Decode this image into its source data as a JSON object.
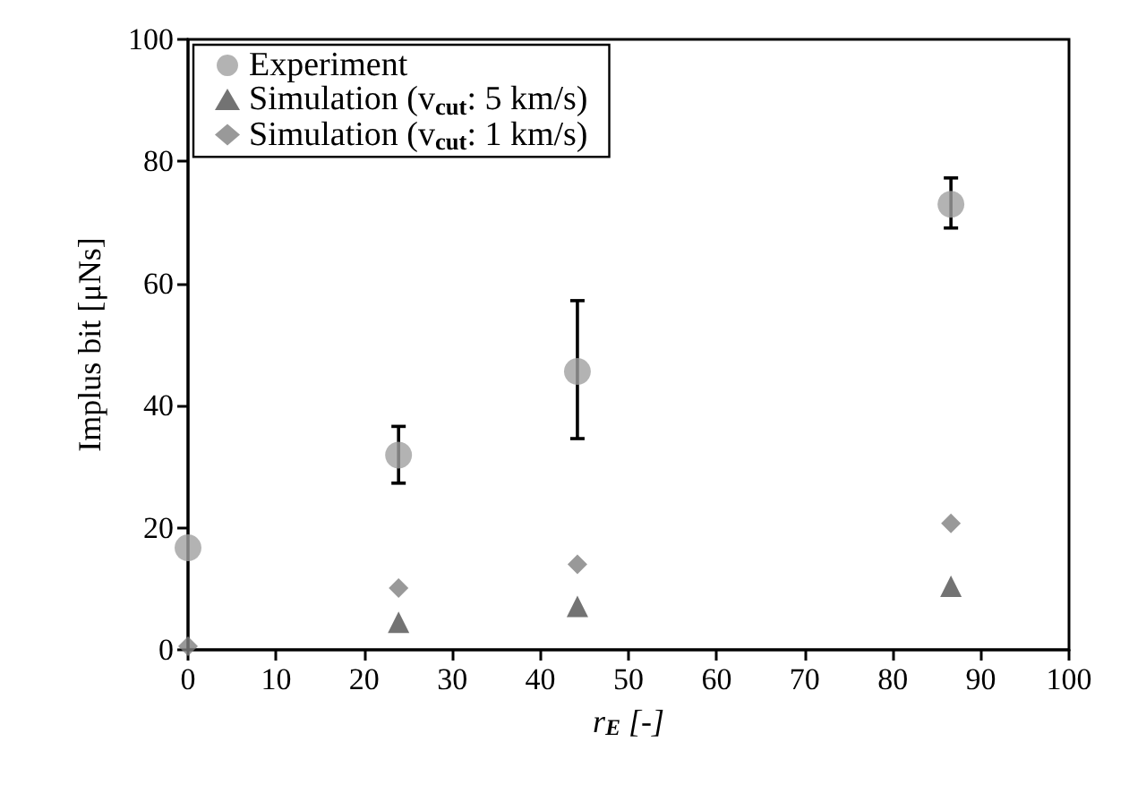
{
  "chart_data": {
    "type": "scatter",
    "xlabel": "r$_{E}$ [-]",
    "ylabel": "Implus bit [μNs]",
    "xlim": [
      0,
      100
    ],
    "xticks": [
      0,
      10,
      20,
      30,
      40,
      50,
      60,
      70,
      80,
      90,
      100
    ],
    "ylim": [
      0,
      100
    ],
    "yticks": [
      0,
      20,
      40,
      60,
      80,
      100
    ],
    "grid": false,
    "legend": "top left",
    "series": [
      {
        "name": "Experiment",
        "color": "#a0a0a0",
        "marker": "circle",
        "x": [
          0,
          23.9,
          44.2,
          86.6
        ],
        "values": [
          16.7,
          31.9,
          45.6,
          73
        ],
        "errors": [
          null,
          [
            27.3,
            36.6
          ],
          [
            34.6,
            57.2
          ],
          [
            69.1,
            77.3
          ]
        ]
      },
      {
        "name": "Simulation (v$_{cut}$: 5 km/s)",
        "color": "#505050",
        "marker": "triangle",
        "x": [
          23.9,
          44.2,
          86.6
        ],
        "values": [
          4.5,
          7.1,
          10.4
        ]
      },
      {
        "name": "Simulation (v$_{cut}$: 1 km/s)",
        "color": "#808080",
        "marker": "diamond",
        "x": [
          0,
          23.9,
          44.2,
          86.6
        ],
        "values": [
          0.6,
          10.1,
          14,
          20.7
        ]
      }
    ]
  }
}
